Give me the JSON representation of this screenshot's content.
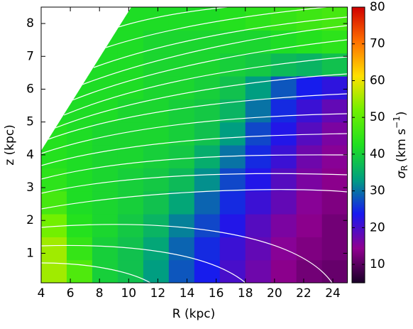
{
  "chart_data": {
    "type": "heatmap",
    "xlabel": "R (kpc)",
    "ylabel": "z (kpc)",
    "colorbar_label": {
      "symbol": "σ",
      "subscript": "R",
      "unit": "(km s",
      "exponent": "−1",
      "close": ")"
    },
    "x_bins": [
      4,
      5.75,
      7.5,
      9.25,
      11,
      12.75,
      14.5,
      16.25,
      18,
      19.75,
      21.5,
      23.25,
      25
    ],
    "y_bins": [
      0.1,
      0.8,
      1.5,
      2.2,
      2.9,
      3.6,
      4.3,
      5.0,
      5.7,
      6.4,
      7.1,
      7.8,
      8.5
    ],
    "values": [
      [
        55,
        48,
        40,
        38,
        33,
        28,
        24,
        20,
        17,
        14,
        12,
        11
      ],
      [
        55,
        45,
        40,
        38,
        34,
        29,
        25,
        21,
        18,
        15,
        13,
        12
      ],
      [
        52,
        43,
        41,
        39,
        36,
        31,
        27,
        23,
        19,
        16,
        14,
        12
      ],
      [
        47,
        42,
        41,
        40,
        38,
        34,
        29,
        25,
        21,
        18,
        15,
        13
      ],
      [
        44,
        42,
        41,
        40,
        39,
        37,
        32,
        27,
        23,
        19,
        16,
        14
      ],
      [
        43,
        42,
        41,
        41,
        40,
        39,
        35,
        30,
        25,
        21,
        17,
        15
      ],
      [
        43,
        42,
        41,
        41,
        41,
        40,
        38,
        33,
        27,
        23,
        19,
        16
      ],
      [
        42,
        42,
        42,
        41,
        41,
        40,
        39,
        36,
        30,
        25,
        21,
        18
      ],
      [
        null,
        42,
        42,
        42,
        41,
        41,
        40,
        38,
        33,
        28,
        24,
        22
      ],
      [
        null,
        42,
        42,
        42,
        41,
        41,
        41,
        40,
        39,
        37,
        36,
        38
      ],
      [
        null,
        null,
        42,
        42,
        41,
        41,
        41,
        41,
        41,
        42,
        43,
        44
      ],
      [
        null,
        null,
        42,
        42,
        42,
        42,
        42,
        43,
        44,
        45,
        46,
        47
      ]
    ],
    "xlim": [
      4,
      25
    ],
    "ylim": [
      0.1,
      8.5
    ],
    "xticks": [
      4,
      6,
      8,
      10,
      12,
      14,
      16,
      18,
      20,
      22,
      24
    ],
    "yticks": [
      1,
      2,
      3,
      4,
      5,
      6,
      7,
      8
    ],
    "colorbar": {
      "lim": [
        5,
        80
      ],
      "ticks": [
        10,
        20,
        30,
        40,
        50,
        60,
        70,
        80
      ],
      "colors": [
        "#1a0028",
        "#900090",
        "#1818f0",
        "#00a080",
        "#20e020",
        "#70f000",
        "#ffe000",
        "#ff7000",
        "#d00000"
      ]
    }
  }
}
